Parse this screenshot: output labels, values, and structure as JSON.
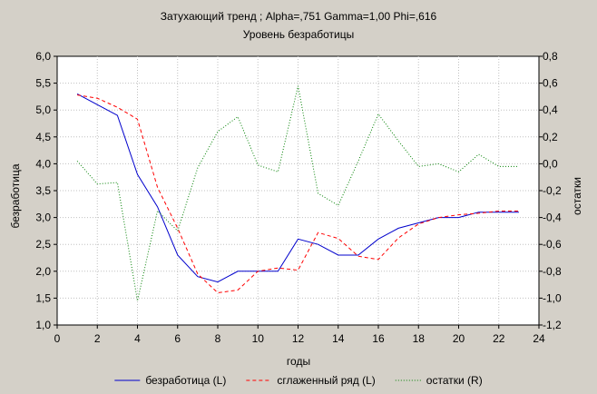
{
  "chart_data": {
    "type": "line",
    "title": "Затухающий тренд ; Alpha=,751 Gamma=1,00 Phi=,616",
    "subtitle": "Уровень безработицы",
    "xlabel": "годы",
    "ylabel_left": "безработица",
    "ylabel_right": "остатки",
    "xlim": [
      0,
      24
    ],
    "ylim_left": [
      1.0,
      6.0
    ],
    "ylim_right": [
      -1.2,
      0.8
    ],
    "x_ticks": [
      "0",
      "2",
      "4",
      "6",
      "8",
      "10",
      "12",
      "14",
      "16",
      "18",
      "20",
      "22",
      "24"
    ],
    "y_left_ticks": [
      "1,0",
      "1,5",
      "2,0",
      "2,5",
      "3,0",
      "3,5",
      "4,0",
      "4,5",
      "5,0",
      "5,5",
      "6,0"
    ],
    "y_right_ticks": [
      "-1,2",
      "-1,0",
      "-0,8",
      "-0,6",
      "-0,4",
      "-0,2",
      "0,0",
      "0,2",
      "0,4",
      "0,6",
      "0,8"
    ],
    "grid": true,
    "legend_position": "bottom",
    "x": [
      1,
      2,
      3,
      4,
      5,
      6,
      7,
      8,
      9,
      10,
      11,
      12,
      13,
      14,
      15,
      16,
      17,
      18,
      19,
      20,
      21,
      22,
      23
    ],
    "series": [
      {
        "name": "безработица (L)",
        "axis": "left",
        "color": "#0000cc",
        "dash": "solid",
        "values": [
          5.3,
          5.1,
          4.9,
          3.8,
          3.2,
          2.3,
          1.9,
          1.8,
          2.0,
          2.0,
          2.0,
          2.6,
          2.5,
          2.3,
          2.3,
          2.6,
          2.8,
          2.9,
          3.0,
          3.0,
          3.1,
          3.1,
          3.1
        ]
      },
      {
        "name": "сглаженный ряд (L)",
        "axis": "left",
        "color": "#ff0000",
        "dash": "dashed",
        "values": [
          5.28,
          5.22,
          5.05,
          4.83,
          3.56,
          2.8,
          1.95,
          1.6,
          1.65,
          2.0,
          2.06,
          2.02,
          2.72,
          2.61,
          2.28,
          2.22,
          2.62,
          2.88,
          3.0,
          3.05,
          3.08,
          3.12,
          3.12
        ]
      },
      {
        "name": "остатки (R)",
        "axis": "right",
        "color": "#008000",
        "dash": "dotted",
        "values": [
          0.02,
          -0.15,
          -0.14,
          -1.02,
          -0.35,
          -0.5,
          -0.03,
          0.24,
          0.35,
          -0.01,
          -0.06,
          0.58,
          -0.22,
          -0.31,
          0.02,
          0.37,
          0.17,
          -0.02,
          0.0,
          -0.06,
          0.07,
          -0.02,
          -0.02
        ]
      }
    ]
  }
}
